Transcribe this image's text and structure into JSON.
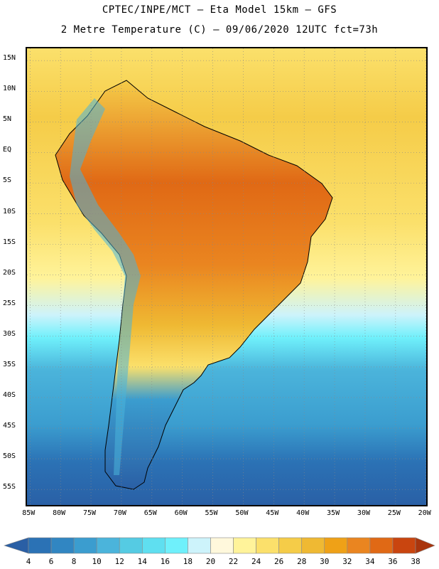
{
  "header": {
    "line1": "CPTEC/INPE/MCT –  Eta Model 15km – GFS",
    "line2": "2 Metre Temperature (C) – 09/06/2020 12UTC fct=73h"
  },
  "map": {
    "lat_labels": [
      "15N",
      "10N",
      "5N",
      "EQ",
      "5S",
      "10S",
      "15S",
      "20S",
      "25S",
      "30S",
      "35S",
      "40S",
      "45S",
      "50S",
      "55S"
    ],
    "lon_labels": [
      "85W",
      "80W",
      "75W",
      "70W",
      "65W",
      "60W",
      "55W",
      "50W",
      "45W",
      "40W",
      "35W",
      "30W",
      "25W",
      "20W"
    ],
    "lat_range": [
      17,
      -58
    ],
    "lon_range": [
      -85.5,
      -19.5
    ],
    "gridlines": "dotted"
  },
  "colorbar": {
    "levels": [
      "4",
      "6",
      "8",
      "10",
      "12",
      "14",
      "16",
      "18",
      "20",
      "22",
      "24",
      "26",
      "28",
      "30",
      "32",
      "34",
      "36",
      "38"
    ],
    "colors": [
      "#2a5fa5",
      "#2b72b5",
      "#3186c2",
      "#3b9dcf",
      "#4bb4db",
      "#55cbe3",
      "#5fdff0",
      "#6ff0fb",
      "#cdf3fb",
      "#fff8dc",
      "#fff39a",
      "#fbe06b",
      "#f5cc48",
      "#efb933",
      "#efa117",
      "#ea8520",
      "#e06915",
      "#c9450f",
      "#b8330d",
      "#a9350d"
    ]
  },
  "legend_colors": {
    "ocean_warm": "#fbe06b",
    "ocean_cool": "#4bb4db",
    "land_hot": "#ea8520",
    "coastline": "#000000"
  }
}
